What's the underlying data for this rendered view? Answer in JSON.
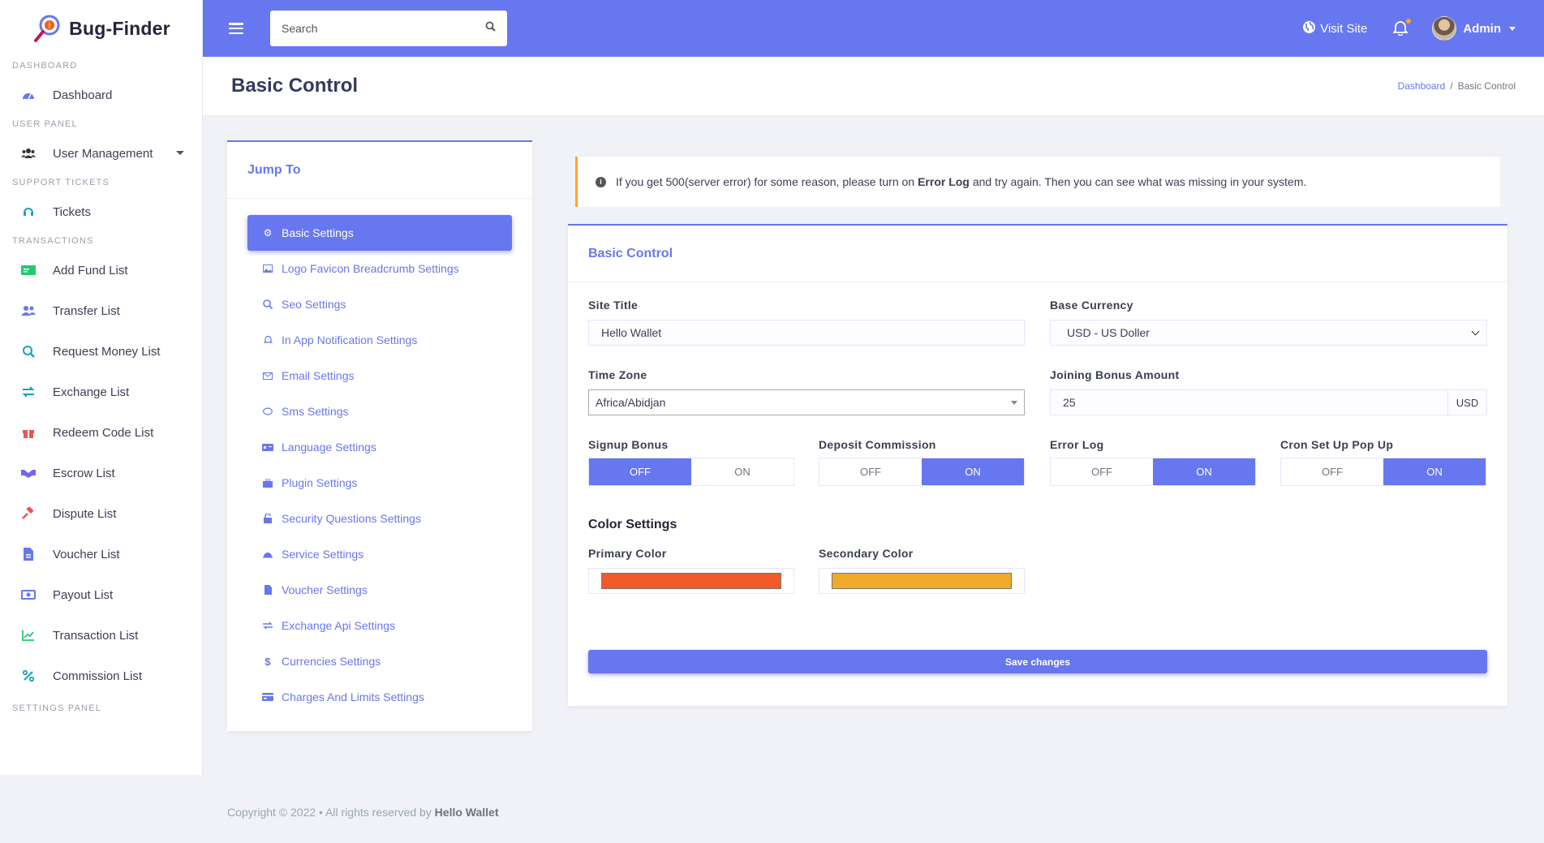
{
  "brand": {
    "name": "Bug-Finder"
  },
  "sidebar": {
    "sections": {
      "dashboard": "DASHBOARD",
      "user_panel": "USER PANEL",
      "support": "SUPPORT TICKETS",
      "transactions": "TRANSACTIONS",
      "settings": "SETTINGS PANEL"
    },
    "items": {
      "dashboard": "Dashboard",
      "user_management": "User Management",
      "tickets": "Tickets",
      "add_fund": "Add Fund List",
      "transfer": "Transfer List",
      "request_money": "Request Money List",
      "exchange": "Exchange List",
      "redeem": "Redeem Code List",
      "escrow": "Escrow List",
      "dispute": "Dispute List",
      "voucher": "Voucher List",
      "payout": "Payout List",
      "transaction": "Transaction List",
      "commission": "Commission List"
    }
  },
  "topbar": {
    "search_placeholder": "Search",
    "visit_site": "Visit Site",
    "admin": "Admin"
  },
  "page": {
    "title": "Basic Control",
    "breadcrumb_home": "Dashboard",
    "breadcrumb_current": "Basic Control"
  },
  "jump": {
    "title": "Jump To",
    "items": [
      "Basic Settings",
      "Logo Favicon Breadcrumb Settings",
      "Seo Settings",
      "In App Notification Settings",
      "Email Settings",
      "Sms Settings",
      "Language Settings",
      "Plugin Settings",
      "Security Questions Settings",
      "Service Settings",
      "Voucher Settings",
      "Exchange Api Settings",
      "Currencies Settings",
      "Charges And Limits Settings"
    ]
  },
  "alert": {
    "pre": "If you get 500(server error) for some reason, please turn on",
    "bold": "Error Log",
    "post": "and try again. Then you can see what was missing in your system."
  },
  "form": {
    "card_title": "Basic Control",
    "site_title_label": "Site Title",
    "site_title_value": "Hello Wallet",
    "base_currency_label": "Base Currency",
    "base_currency_value": "USD - US Doller",
    "time_zone_label": "Time Zone",
    "time_zone_value": "Africa/Abidjan",
    "joining_bonus_label": "Joining Bonus Amount",
    "joining_bonus_value": "25",
    "joining_bonus_unit": "USD",
    "off": "OFF",
    "on": "ON",
    "signup_bonus_label": "Signup Bonus",
    "deposit_commission_label": "Deposit Commission",
    "error_log_label": "Error Log",
    "cron_label": "Cron Set Up Pop Up",
    "color_settings_title": "Color Settings",
    "primary_color_label": "Primary Color",
    "secondary_color_label": "Secondary Color",
    "primary_color": "#f15a29",
    "secondary_color": "#f0a92b",
    "save_label": "Save changes"
  },
  "footer": {
    "text": "Copyright © 2022  •  All rights reserved by",
    "owner": "Hello Wallet"
  }
}
